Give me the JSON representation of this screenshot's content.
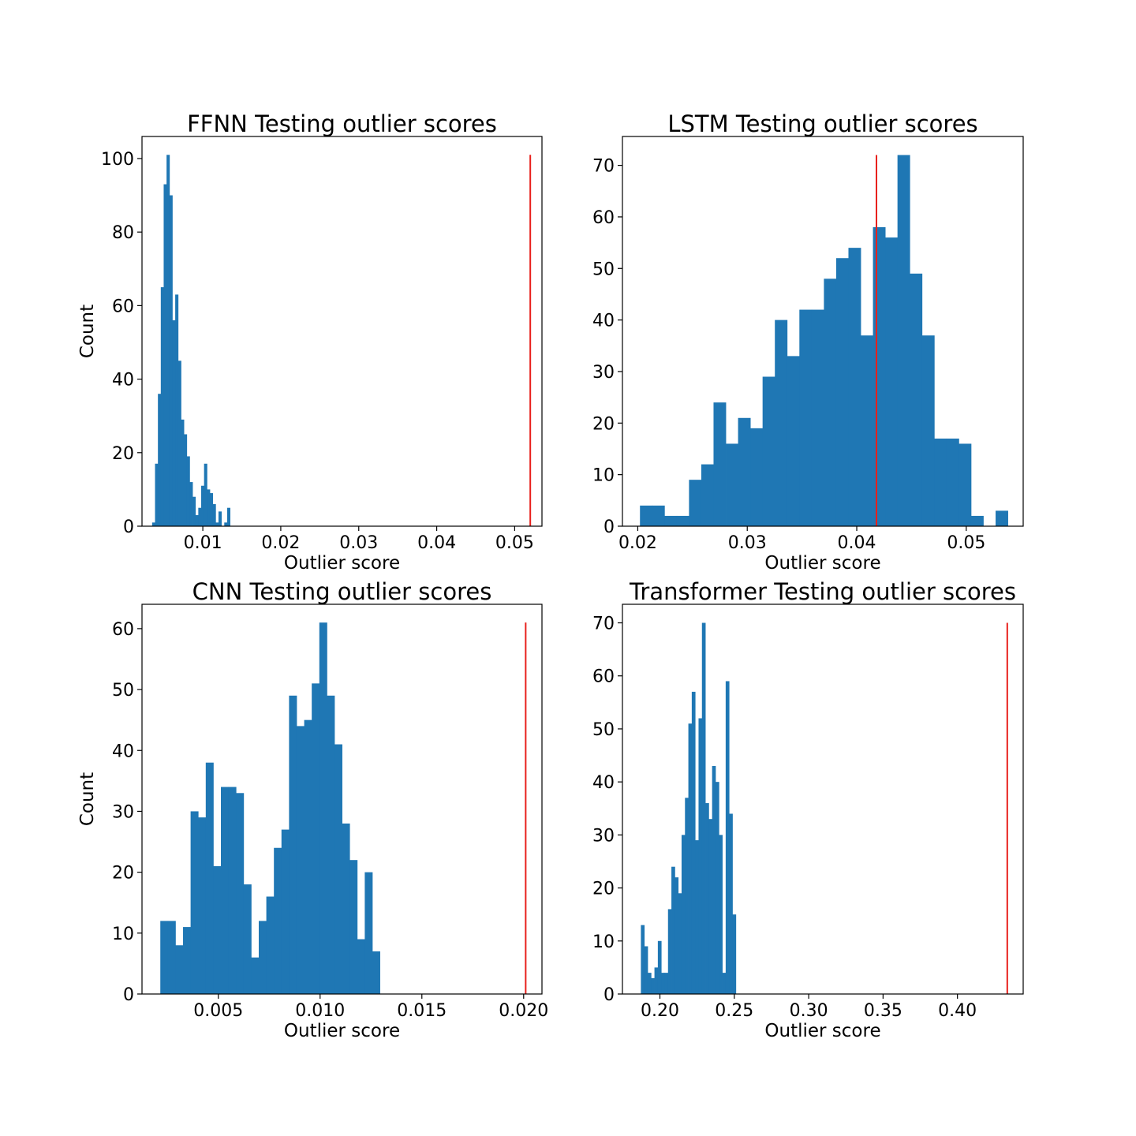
{
  "chart_data": [
    {
      "type": "histogram",
      "title": "FFNN Testing outlier scores",
      "xlabel": "Outlier score",
      "ylabel": "Count",
      "xlim": [
        0.0022,
        0.0535
      ],
      "ylim": [
        0,
        106
      ],
      "xticks": [
        0.01,
        0.02,
        0.03,
        0.04,
        0.05
      ],
      "xtick_labels": [
        "0.01",
        "0.02",
        "0.03",
        "0.04",
        "0.05"
      ],
      "yticks": [
        0,
        20,
        40,
        60,
        80,
        100
      ],
      "bin_start": 0.0035,
      "bin_width": 0.00037,
      "counts": [
        1,
        17,
        36,
        65,
        93,
        101,
        90,
        56,
        63,
        45,
        29,
        25,
        19,
        12,
        8,
        3,
        5,
        11,
        17,
        10,
        9,
        6,
        1,
        4,
        0,
        1,
        5
      ],
      "threshold": {
        "x": 0.052,
        "height": 101,
        "color": "#e8201c"
      }
    },
    {
      "type": "histogram",
      "title": "LSTM Testing outlier scores",
      "xlabel": "Outlier score",
      "ylabel": "",
      "xlim": [
        0.0186,
        0.0552
      ],
      "ylim": [
        0,
        75.6
      ],
      "xticks": [
        0.02,
        0.03,
        0.04,
        0.05
      ],
      "xtick_labels": [
        "0.02",
        "0.03",
        "0.04",
        "0.05"
      ],
      "yticks": [
        0,
        10,
        20,
        30,
        40,
        50,
        60,
        70
      ],
      "bin_start": 0.0202,
      "bin_width": 0.00112,
      "counts": [
        4,
        4,
        2,
        2,
        9,
        12,
        24,
        16,
        21,
        19,
        29,
        40,
        33,
        42,
        42,
        48,
        52,
        54,
        37,
        58,
        56,
        72,
        49,
        37,
        17,
        17,
        16,
        2,
        0,
        3
      ],
      "threshold": {
        "x": 0.0418,
        "height": 72,
        "color": "#e8201c"
      }
    },
    {
      "type": "histogram",
      "title": "CNN Testing outlier scores",
      "xlabel": "Outlier score",
      "ylabel": "Count",
      "xlim": [
        0.00125,
        0.0209
      ],
      "ylim": [
        0,
        64
      ],
      "xticks": [
        0.005,
        0.01,
        0.015,
        0.02
      ],
      "xtick_labels": [
        "0.005",
        "0.010",
        "0.015",
        "0.020"
      ],
      "yticks": [
        0,
        10,
        20,
        30,
        40,
        50,
        60
      ],
      "bin_start": 0.00215,
      "bin_width": 0.000372,
      "counts": [
        12,
        12,
        8,
        11,
        30,
        29,
        38,
        21,
        34,
        34,
        33,
        18,
        6,
        12,
        16,
        24,
        27,
        49,
        44,
        45,
        51,
        61,
        49,
        41,
        28,
        22,
        9,
        20,
        7
      ],
      "threshold": {
        "x": 0.0201,
        "height": 61,
        "color": "#e8201c"
      }
    },
    {
      "type": "histogram",
      "title": "Transformer Testing outlier scores",
      "xlabel": "Outlier score",
      "ylabel": "",
      "xlim": [
        0.1748,
        0.4442
      ],
      "ylim": [
        0,
        73.5
      ],
      "xticks": [
        0.2,
        0.25,
        0.3,
        0.35,
        0.4
      ],
      "xtick_labels": [
        "0.20",
        "0.25",
        "0.30",
        "0.35",
        "0.40"
      ],
      "yticks": [
        0,
        10,
        20,
        30,
        40,
        50,
        60,
        70
      ],
      "bin_start": 0.1872,
      "bin_width": 0.00228,
      "counts": [
        13,
        9,
        4,
        3,
        5,
        10,
        4,
        4,
        16,
        24,
        22,
        19,
        30,
        37,
        51,
        57,
        29,
        52,
        70,
        36,
        33,
        43,
        40,
        30,
        4,
        59,
        34,
        15
      ],
      "threshold": {
        "x": 0.4335,
        "height": 70,
        "color": "#e8201c"
      }
    }
  ]
}
